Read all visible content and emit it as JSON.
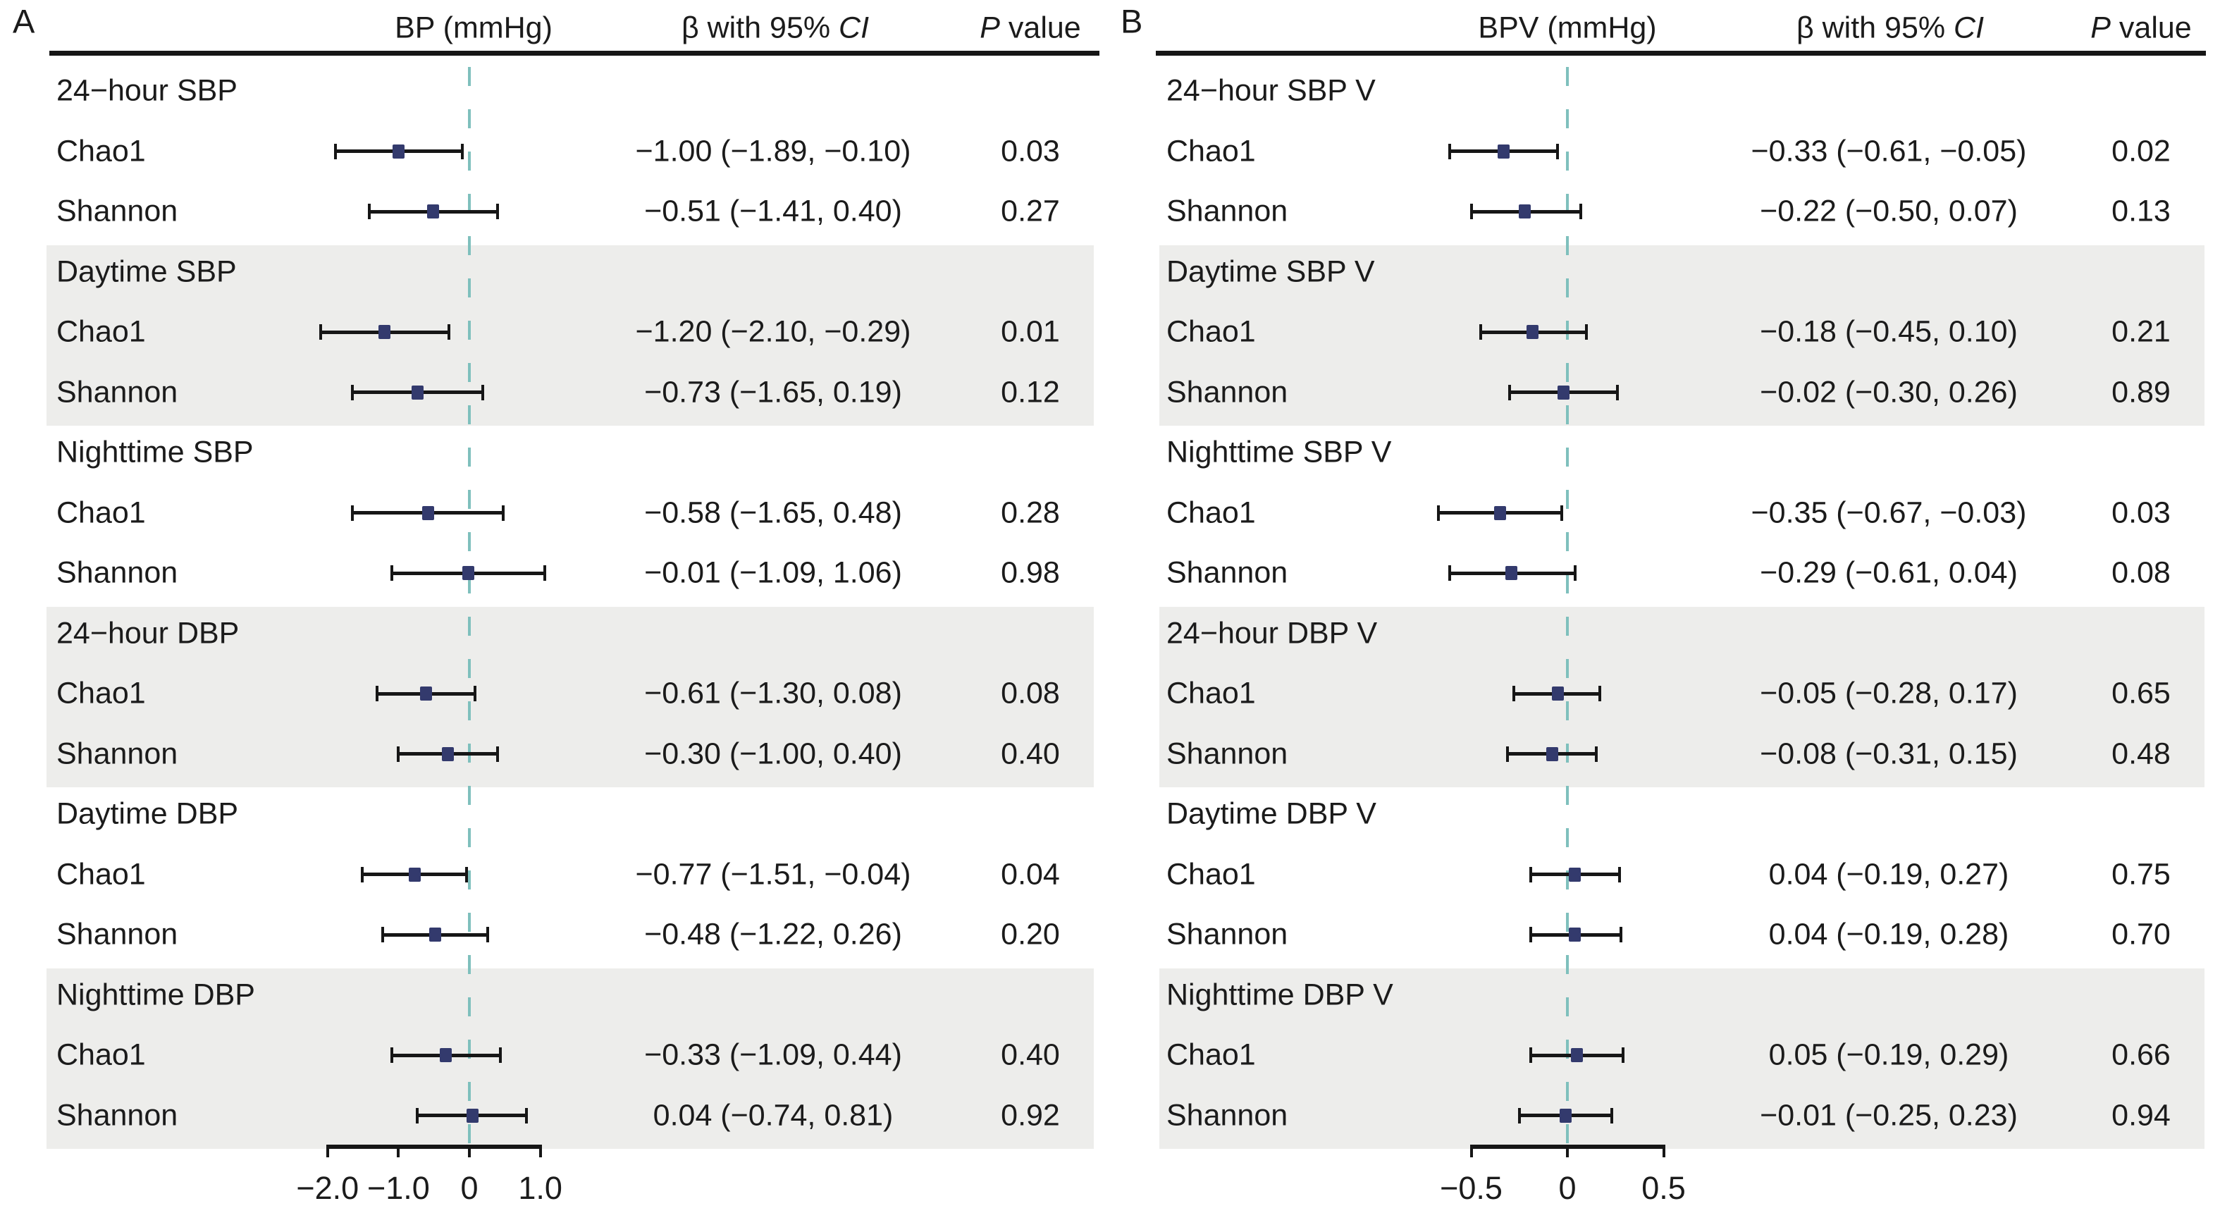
{
  "colors": {
    "marker": "#333A6D",
    "zero_line": "#7FC0BD",
    "band": "#EDEDEB",
    "ink": "#161616",
    "text": "#1B1B1B"
  },
  "chart_data": [
    {
      "type": "scatter",
      "subtype": "forest-plot",
      "panel_label": "A",
      "title": "BP (mmHg)",
      "effect_header": {
        "text": "β with 95% ",
        "ci": "CI"
      },
      "p_header": {
        "p": "P",
        "rest": " value"
      },
      "axis": {
        "ticks": [
          -2.0,
          -1.0,
          0,
          1.0
        ],
        "tick_labels": [
          "−2.0",
          "−1.0",
          "0",
          "1.0"
        ],
        "zero_line": 0,
        "xlim": [
          -2.25,
          1.15
        ]
      },
      "groups": [
        {
          "label": "24−hour SBP",
          "rows": [
            {
              "label": "Chao1",
              "beta": -1.0,
              "ci": [
                -1.89,
                -0.1
              ],
              "effect_text": "−1.00 (−1.89, −0.10)",
              "p_text": "0.03"
            },
            {
              "label": "Shannon",
              "beta": -0.51,
              "ci": [
                -1.41,
                0.4
              ],
              "effect_text": "−0.51 (−1.41, 0.40)",
              "p_text": "0.27"
            }
          ]
        },
        {
          "label": "Daytime SBP",
          "rows": [
            {
              "label": "Chao1",
              "beta": -1.2,
              "ci": [
                -2.1,
                -0.29
              ],
              "effect_text": "−1.20 (−2.10, −0.29)",
              "p_text": "0.01"
            },
            {
              "label": "Shannon",
              "beta": -0.73,
              "ci": [
                -1.65,
                0.19
              ],
              "effect_text": "−0.73 (−1.65, 0.19)",
              "p_text": "0.12"
            }
          ]
        },
        {
          "label": "Nighttime SBP",
          "rows": [
            {
              "label": "Chao1",
              "beta": -0.58,
              "ci": [
                -1.65,
                0.48
              ],
              "effect_text": "−0.58 (−1.65, 0.48)",
              "p_text": "0.28"
            },
            {
              "label": "Shannon",
              "beta": -0.01,
              "ci": [
                -1.09,
                1.06
              ],
              "effect_text": "−0.01 (−1.09, 1.06)",
              "p_text": "0.98"
            }
          ]
        },
        {
          "label": "24−hour DBP",
          "rows": [
            {
              "label": "Chao1",
              "beta": -0.61,
              "ci": [
                -1.3,
                0.08
              ],
              "effect_text": "−0.61 (−1.30, 0.08)",
              "p_text": "0.08"
            },
            {
              "label": "Shannon",
              "beta": -0.3,
              "ci": [
                -1.0,
                0.4
              ],
              "effect_text": "−0.30 (−1.00, 0.40)",
              "p_text": "0.40"
            }
          ]
        },
        {
          "label": "Daytime DBP",
          "rows": [
            {
              "label": "Chao1",
              "beta": -0.77,
              "ci": [
                -1.51,
                -0.04
              ],
              "effect_text": "−0.77 (−1.51, −0.04)",
              "p_text": "0.04"
            },
            {
              "label": "Shannon",
              "beta": -0.48,
              "ci": [
                -1.22,
                0.26
              ],
              "effect_text": "−0.48 (−1.22, 0.26)",
              "p_text": "0.20"
            }
          ]
        },
        {
          "label": "Nighttime DBP",
          "rows": [
            {
              "label": "Chao1",
              "beta": -0.33,
              "ci": [
                -1.09,
                0.44
              ],
              "effect_text": "−0.33 (−1.09, 0.44)",
              "p_text": "0.40"
            },
            {
              "label": "Shannon",
              "beta": 0.04,
              "ci": [
                -0.74,
                0.81
              ],
              "effect_text": "0.04 (−0.74, 0.81)",
              "p_text": "0.92"
            }
          ]
        }
      ]
    },
    {
      "type": "scatter",
      "subtype": "forest-plot",
      "panel_label": "B",
      "title": "BPV (mmHg)",
      "effect_header": {
        "text": "β with 95% ",
        "ci": "CI"
      },
      "p_header": {
        "p": "P",
        "rest": " value"
      },
      "axis": {
        "ticks": [
          -0.5,
          0,
          0.5
        ],
        "tick_labels": [
          "−0.5",
          "0",
          "0.5"
        ],
        "zero_line": 0,
        "xlim": [
          -0.75,
          0.55
        ]
      },
      "groups": [
        {
          "label": "24−hour SBP V",
          "rows": [
            {
              "label": "Chao1",
              "beta": -0.33,
              "ci": [
                -0.61,
                -0.05
              ],
              "effect_text": "−0.33 (−0.61, −0.05)",
              "p_text": "0.02"
            },
            {
              "label": "Shannon",
              "beta": -0.22,
              "ci": [
                -0.5,
                0.07
              ],
              "effect_text": "−0.22 (−0.50, 0.07)",
              "p_text": "0.13"
            }
          ]
        },
        {
          "label": "Daytime SBP V",
          "rows": [
            {
              "label": "Chao1",
              "beta": -0.18,
              "ci": [
                -0.45,
                0.1
              ],
              "effect_text": "−0.18 (−0.45, 0.10)",
              "p_text": "0.21"
            },
            {
              "label": "Shannon",
              "beta": -0.02,
              "ci": [
                -0.3,
                0.26
              ],
              "effect_text": "−0.02 (−0.30, 0.26)",
              "p_text": "0.89"
            }
          ]
        },
        {
          "label": "Nighttime SBP V",
          "rows": [
            {
              "label": "Chao1",
              "beta": -0.35,
              "ci": [
                -0.67,
                -0.03
              ],
              "effect_text": "−0.35 (−0.67, −0.03)",
              "p_text": "0.03"
            },
            {
              "label": "Shannon",
              "beta": -0.29,
              "ci": [
                -0.61,
                0.04
              ],
              "effect_text": "−0.29 (−0.61, 0.04)",
              "p_text": "0.08"
            }
          ]
        },
        {
          "label": "24−hour DBP V",
          "rows": [
            {
              "label": "Chao1",
              "beta": -0.05,
              "ci": [
                -0.28,
                0.17
              ],
              "effect_text": "−0.05 (−0.28, 0.17)",
              "p_text": "0.65"
            },
            {
              "label": "Shannon",
              "beta": -0.08,
              "ci": [
                -0.31,
                0.15
              ],
              "effect_text": "−0.08 (−0.31, 0.15)",
              "p_text": "0.48"
            }
          ]
        },
        {
          "label": "Daytime DBP V",
          "rows": [
            {
              "label": "Chao1",
              "beta": 0.04,
              "ci": [
                -0.19,
                0.27
              ],
              "effect_text": "0.04 (−0.19, 0.27)",
              "p_text": "0.75"
            },
            {
              "label": "Shannon",
              "beta": 0.04,
              "ci": [
                -0.19,
                0.28
              ],
              "effect_text": "0.04 (−0.19, 0.28)",
              "p_text": "0.70"
            }
          ]
        },
        {
          "label": "Nighttime DBP V",
          "rows": [
            {
              "label": "Chao1",
              "beta": 0.05,
              "ci": [
                -0.19,
                0.29
              ],
              "effect_text": "0.05 (−0.19, 0.29)",
              "p_text": "0.66"
            },
            {
              "label": "Shannon",
              "beta": -0.01,
              "ci": [
                -0.25,
                0.23
              ],
              "effect_text": "−0.01 (−0.25, 0.23)",
              "p_text": "0.94"
            }
          ]
        }
      ]
    }
  ]
}
